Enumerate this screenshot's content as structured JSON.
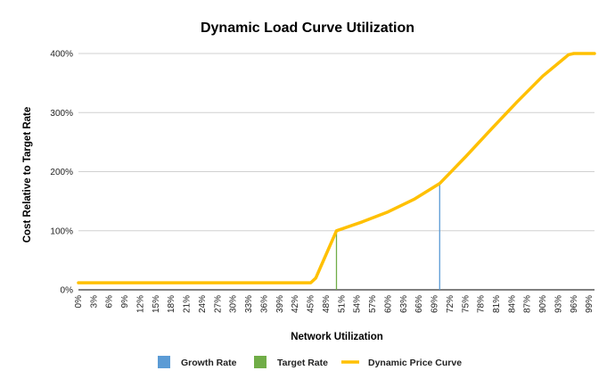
{
  "chart_data": {
    "type": "line",
    "title": "Dynamic Load Curve Utilization",
    "xlabel": "Network Utilization",
    "ylabel": "Cost Relative to Target Rate",
    "ylim": [
      0,
      400
    ],
    "y_ticks": [
      "0%",
      "100%",
      "200%",
      "300%",
      "400%"
    ],
    "x_ticks": [
      "0%",
      "3%",
      "6%",
      "9%",
      "12%",
      "15%",
      "18%",
      "21%",
      "24%",
      "27%",
      "30%",
      "33%",
      "36%",
      "39%",
      "42%",
      "45%",
      "48%",
      "51%",
      "54%",
      "57%",
      "60%",
      "63%",
      "66%",
      "69%",
      "72%",
      "75%",
      "78%",
      "81%",
      "84%",
      "87%",
      "90%",
      "93%",
      "96%",
      "99%"
    ],
    "xlim": [
      0,
      100
    ],
    "grid": true,
    "legend_position": "bottom",
    "series": [
      {
        "name": "Dynamic Price Curve",
        "color": "#FFC000",
        "x": [
          0,
          45,
          46,
          47,
          50,
          55,
          60,
          65,
          70,
          75,
          80,
          85,
          90,
          95,
          96,
          100
        ],
        "values": [
          12,
          12,
          20,
          40,
          100,
          115,
          132,
          153,
          180,
          225,
          272,
          318,
          362,
          398,
          400,
          400
        ]
      },
      {
        "name": "Growth Rate",
        "color": "#5B9BD5",
        "x": 70,
        "values": [
          0,
          180
        ]
      },
      {
        "name": "Target Rate",
        "color": "#70AD47",
        "x": 50,
        "values": [
          0,
          100
        ]
      }
    ],
    "legend": [
      {
        "name": "Growth Rate",
        "color": "#5B9BD5",
        "marker": "square"
      },
      {
        "name": "Target Rate",
        "color": "#70AD47",
        "marker": "square"
      },
      {
        "name": "Dynamic Price Curve",
        "color": "#FFC000",
        "marker": "line"
      }
    ]
  }
}
